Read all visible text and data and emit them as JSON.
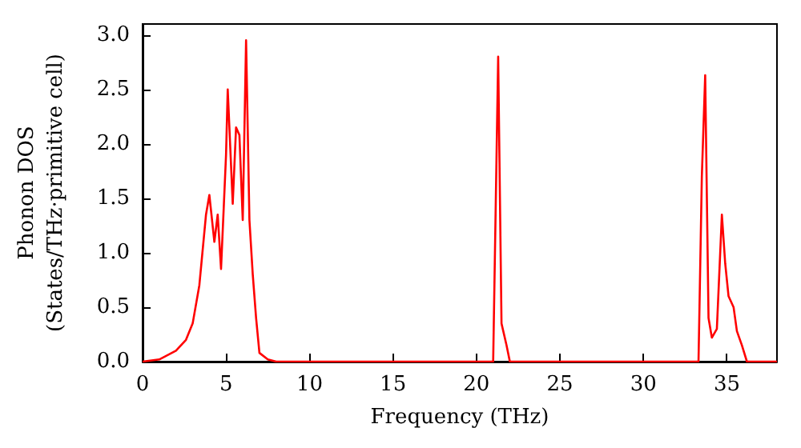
{
  "chart_data": {
    "type": "line",
    "xlabel": "Frequency (THz)",
    "ylabel": "Phonon DOS\n(States/THz·primitive cell)",
    "xlim": [
      0,
      38
    ],
    "xticks": [
      0,
      5,
      10,
      15,
      20,
      25,
      30,
      35
    ],
    "ylim": [
      0,
      3.1
    ],
    "yticks": [
      {
        "value": 0,
        "label": "0.0"
      },
      {
        "value": 0.5,
        "label": "0.5"
      },
      {
        "value": 1,
        "label": "1.0"
      },
      {
        "value": 1.5,
        "label": "1.5"
      },
      {
        "value": 2,
        "label": "2.0"
      },
      {
        "value": 2.5,
        "label": "2.5"
      },
      {
        "value": 3,
        "label": "3.0"
      }
    ],
    "grid": false,
    "marker": "none",
    "line_style": "solid",
    "series": [
      {
        "color": "#ff0000",
        "x": [
          0,
          1,
          2,
          2.6,
          3,
          3.4,
          3.8,
          4.0,
          4.3,
          4.5,
          4.7,
          5.0,
          5.1,
          5.4,
          5.6,
          5.8,
          6.0,
          6.2,
          6.4,
          6.6,
          6.8,
          7.0,
          7.5,
          8,
          20.5,
          21.0,
          21.3,
          21.5,
          21.8,
          22,
          33.3,
          33.5,
          33.7,
          33.9,
          34.1,
          34.4,
          34.7,
          34.9,
          35.1,
          35.4,
          35.6,
          35.9,
          36.2,
          38
        ],
        "values": [
          0,
          0.02,
          0.1,
          0.2,
          0.35,
          0.7,
          1.35,
          1.53,
          1.1,
          1.35,
          0.85,
          1.9,
          2.5,
          1.45,
          2.15,
          2.08,
          1.3,
          2.95,
          1.3,
          0.8,
          0.4,
          0.08,
          0.02,
          0,
          0,
          0,
          2.8,
          0.35,
          0.15,
          0,
          0,
          1.7,
          2.63,
          0.4,
          0.22,
          0.3,
          1.35,
          0.9,
          0.6,
          0.5,
          0.28,
          0.15,
          0,
          0
        ]
      }
    ]
  }
}
